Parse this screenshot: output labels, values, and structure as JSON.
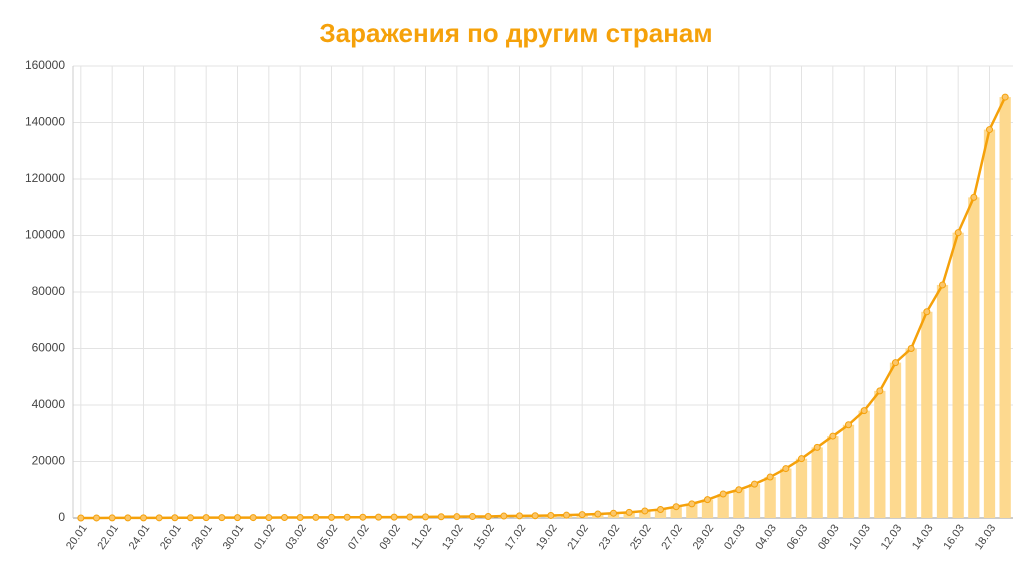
{
  "chart_data": {
    "type": "bar",
    "title": "Заражения по другим странам",
    "categories": [
      "20.01",
      null,
      "22.01",
      null,
      "24.01",
      null,
      "26.01",
      null,
      "28.01",
      null,
      "30.01",
      null,
      "01.02",
      null,
      "03.02",
      null,
      "05.02",
      null,
      "07.02",
      null,
      "09.02",
      null,
      "11.02",
      null,
      "13.02",
      null,
      "15.02",
      null,
      "17.02",
      null,
      "19.02",
      null,
      "21.02",
      null,
      "23.02",
      null,
      "25.02",
      null,
      "27.02",
      null,
      "29.02",
      null,
      "02.03",
      null,
      "04.03",
      null,
      "06.03",
      null,
      "08.03",
      null,
      "10.03",
      null,
      "12.03",
      null,
      "14.03",
      null,
      "16.03",
      null,
      "18.03",
      null
    ],
    "values": [
      10,
      20,
      30,
      40,
      50,
      60,
      80,
      100,
      120,
      130,
      140,
      150,
      150,
      170,
      190,
      210,
      230,
      260,
      280,
      300,
      320,
      360,
      400,
      440,
      470,
      510,
      530,
      690,
      750,
      800,
      900,
      1000,
      1200,
      1400,
      1700,
      2000,
      2500,
      3000,
      4000,
      5000,
      6500,
      8500,
      10000,
      12000,
      14500,
      17500,
      21000,
      25000,
      29000,
      33000,
      38000,
      45000,
      55000,
      60000,
      73000,
      82500,
      101000,
      113500,
      137500,
      149000
    ],
    "color": "#fdd98f",
    "line_overlay": true,
    "line_color": "#f5a10a",
    "ylim": [
      0,
      160000
    ],
    "yticks": [
      0,
      20000,
      40000,
      60000,
      80000,
      100000,
      120000,
      140000,
      160000
    ],
    "grid": true
  }
}
